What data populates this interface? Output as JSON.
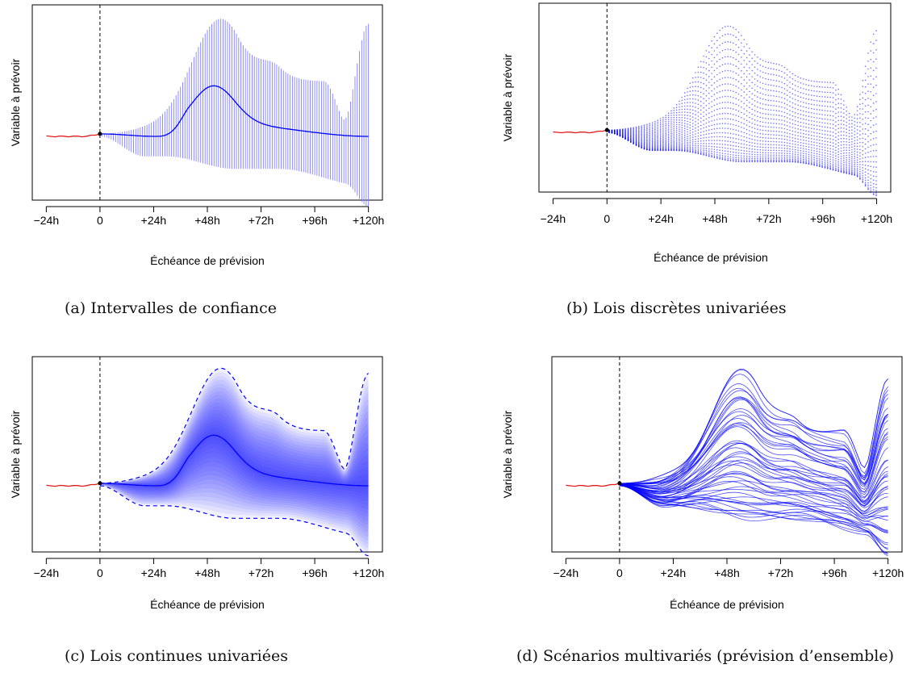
{
  "chart_data": [
    {
      "type": "line",
      "variant": "confidence-intervals",
      "caption": "(a) Intervalles de confiance",
      "xlabel": "Échéance de prévision",
      "ylabel": "Variable à prévoir",
      "xlim": [
        -24,
        120
      ],
      "x_ticks": [
        "−24h",
        "0",
        "+24h",
        "+48h",
        "+72h",
        "+96h",
        "+120h"
      ],
      "x_tick_values": [
        -24,
        0,
        24,
        48,
        72,
        96,
        120
      ],
      "vertical_line_x": 0,
      "colors": {
        "observed": "#e31a1c",
        "forecast": "#0000ff",
        "band": "#8080ff"
      }
    },
    {
      "type": "scatter",
      "variant": "discrete-univariate",
      "caption": "(b) Lois discrètes univariées",
      "xlabel": "Échéance de prévision",
      "ylabel": "Variable à prévoir",
      "xlim": [
        -24,
        120
      ],
      "x_ticks": [
        "−24h",
        "0",
        "+24h",
        "+48h",
        "+72h",
        "+96h",
        "+120h"
      ],
      "x_tick_values": [
        -24,
        0,
        24,
        48,
        72,
        96,
        120
      ],
      "vertical_line_x": 0,
      "colors": {
        "observed": "#e31a1c",
        "forecast": "#0000ff"
      }
    },
    {
      "type": "area",
      "variant": "continuous-univariate",
      "caption": "(c) Lois continues univariées",
      "xlabel": "Échéance de prévision",
      "ylabel": "Variable à prévoir",
      "xlim": [
        -24,
        120
      ],
      "x_ticks": [
        "−24h",
        "0",
        "+24h",
        "+48h",
        "+72h",
        "+96h",
        "+120h"
      ],
      "x_tick_values": [
        -24,
        0,
        24,
        48,
        72,
        96,
        120
      ],
      "vertical_line_x": 0,
      "colors": {
        "observed": "#e31a1c",
        "forecast": "#0000ff"
      }
    },
    {
      "type": "line",
      "variant": "multivariate-scenarios",
      "caption": "(d) Scénarios multivariés (prévision d’ensemble)",
      "xlabel": "Échéance de prévision",
      "ylabel": "Variable à prévoir",
      "xlim": [
        -24,
        120
      ],
      "x_ticks": [
        "−24h",
        "0",
        "+24h",
        "+48h",
        "+72h",
        "+96h",
        "+120h"
      ],
      "x_tick_values": [
        -24,
        0,
        24,
        48,
        72,
        96,
        120
      ],
      "vertical_line_x": 0,
      "colors": {
        "observed": "#e31a1c",
        "forecast": "#0000ff"
      }
    }
  ]
}
